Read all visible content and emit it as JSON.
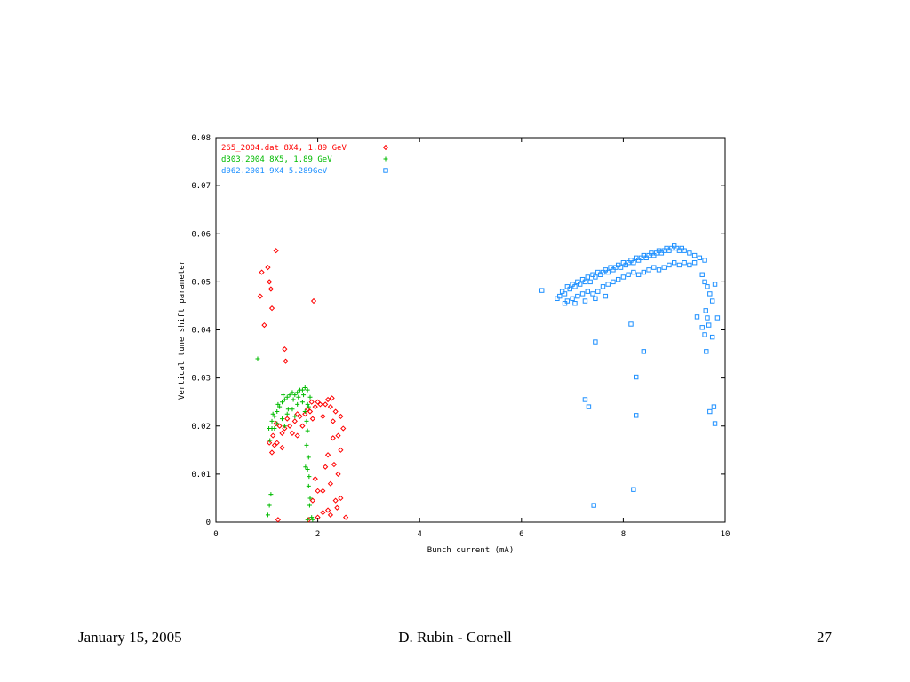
{
  "footer": {
    "date": "January 15, 2005",
    "author": "D. Rubin - Cornell",
    "page_number": "27"
  },
  "chart_data": {
    "type": "scatter",
    "title": "",
    "xlabel": "Bunch current (mA)",
    "ylabel": "Vertical tune shift parameter",
    "xlim": [
      0,
      10
    ],
    "ylim": [
      0,
      0.08
    ],
    "x_ticks": [
      "0",
      "2",
      "4",
      "6",
      "8",
      "10"
    ],
    "y_ticks": [
      "0",
      "0.01",
      "0.02",
      "0.03",
      "0.04",
      "0.05",
      "0.06",
      "0.07",
      "0.08"
    ],
    "grid": false,
    "legend_position": "top-left",
    "series": [
      {
        "name": "265_2004.dat 8X4, 1.89 GeV",
        "color": "#ff0000",
        "marker": "diamond",
        "points": [
          [
            0.87,
            0.047
          ],
          [
            0.9,
            0.052
          ],
          [
            0.95,
            0.041
          ],
          [
            1.02,
            0.053
          ],
          [
            1.05,
            0.05
          ],
          [
            1.08,
            0.0485
          ],
          [
            1.1,
            0.0445
          ],
          [
            1.18,
            0.0565
          ],
          [
            1.35,
            0.036
          ],
          [
            1.37,
            0.0335
          ],
          [
            1.92,
            0.046
          ],
          [
            1.22,
            0.0005
          ],
          [
            1.82,
            0.0005
          ],
          [
            2.0,
            0.001
          ],
          [
            2.1,
            0.002
          ],
          [
            2.2,
            0.0025
          ],
          [
            2.35,
            0.0045
          ],
          [
            2.45,
            0.005
          ],
          [
            2.55,
            0.001
          ],
          [
            2.25,
            0.008
          ],
          [
            2.4,
            0.01
          ],
          [
            2.32,
            0.012
          ],
          [
            2.2,
            0.014
          ],
          [
            2.45,
            0.015
          ],
          [
            1.9,
            0.0045
          ],
          [
            2.0,
            0.0065
          ],
          [
            1.95,
            0.009
          ],
          [
            2.15,
            0.0115
          ],
          [
            2.3,
            0.0175
          ],
          [
            2.5,
            0.0195
          ],
          [
            2.1,
            0.0065
          ],
          [
            2.25,
            0.0015
          ],
          [
            2.38,
            0.003
          ],
          [
            1.1,
            0.0145
          ],
          [
            1.15,
            0.016
          ],
          [
            1.2,
            0.0165
          ],
          [
            1.3,
            0.0185
          ],
          [
            1.35,
            0.0195
          ],
          [
            1.45,
            0.02
          ],
          [
            1.55,
            0.021
          ],
          [
            1.65,
            0.022
          ],
          [
            1.75,
            0.0225
          ],
          [
            1.85,
            0.023
          ],
          [
            1.95,
            0.024
          ],
          [
            2.05,
            0.0245
          ],
          [
            2.15,
            0.0245
          ],
          [
            2.25,
            0.024
          ],
          [
            2.35,
            0.023
          ],
          [
            2.45,
            0.022
          ],
          [
            1.12,
            0.018
          ],
          [
            1.25,
            0.02
          ],
          [
            1.4,
            0.0215
          ],
          [
            1.6,
            0.0225
          ],
          [
            1.8,
            0.0235
          ],
          [
            2.0,
            0.025
          ],
          [
            2.2,
            0.0255
          ],
          [
            1.18,
            0.0205
          ],
          [
            1.5,
            0.0185
          ],
          [
            1.7,
            0.02
          ],
          [
            1.9,
            0.0215
          ],
          [
            2.1,
            0.022
          ],
          [
            2.3,
            0.021
          ],
          [
            1.05,
            0.0165
          ],
          [
            1.3,
            0.0155
          ],
          [
            1.6,
            0.018
          ],
          [
            2.4,
            0.018
          ],
          [
            1.88,
            0.025
          ],
          [
            2.28,
            0.0258
          ]
        ]
      },
      {
        "name": "d303.2004 8X5, 1.89 GeV",
        "color": "#00bb00",
        "marker": "plus",
        "points": [
          [
            0.82,
            0.034
          ],
          [
            1.02,
            0.0015
          ],
          [
            1.05,
            0.0035
          ],
          [
            1.08,
            0.0058
          ],
          [
            1.06,
            0.017
          ],
          [
            1.04,
            0.0195
          ],
          [
            1.1,
            0.021
          ],
          [
            1.15,
            0.022
          ],
          [
            1.2,
            0.023
          ],
          [
            1.25,
            0.024
          ],
          [
            1.3,
            0.025
          ],
          [
            1.35,
            0.0255
          ],
          [
            1.4,
            0.026
          ],
          [
            1.45,
            0.0265
          ],
          [
            1.5,
            0.027
          ],
          [
            1.55,
            0.0265
          ],
          [
            1.6,
            0.027
          ],
          [
            1.65,
            0.0275
          ],
          [
            1.7,
            0.0275
          ],
          [
            1.75,
            0.028
          ],
          [
            1.8,
            0.0275
          ],
          [
            1.85,
            0.026
          ],
          [
            1.1,
            0.0195
          ],
          [
            1.2,
            0.0205
          ],
          [
            1.3,
            0.0215
          ],
          [
            1.4,
            0.0225
          ],
          [
            1.5,
            0.0235
          ],
          [
            1.6,
            0.0245
          ],
          [
            1.7,
            0.025
          ],
          [
            1.8,
            0.0245
          ],
          [
            1.12,
            0.0225
          ],
          [
            1.22,
            0.0245
          ],
          [
            1.32,
            0.0265
          ],
          [
            1.42,
            0.0235
          ],
          [
            1.52,
            0.0255
          ],
          [
            1.62,
            0.026
          ],
          [
            1.72,
            0.0265
          ],
          [
            1.15,
            0.0195
          ],
          [
            1.35,
            0.02
          ],
          [
            1.55,
            0.022
          ],
          [
            1.75,
            0.023
          ],
          [
            1.82,
            0.024
          ],
          [
            1.78,
            0.021
          ],
          [
            1.8,
            0.019
          ],
          [
            1.78,
            0.016
          ],
          [
            1.82,
            0.0135
          ],
          [
            1.8,
            0.011
          ],
          [
            1.83,
            0.0095
          ],
          [
            1.82,
            0.0075
          ],
          [
            1.85,
            0.005
          ],
          [
            1.84,
            0.0035
          ],
          [
            1.8,
            0.0005
          ],
          [
            1.88,
            0.001
          ],
          [
            1.9,
            0.0005
          ],
          [
            1.76,
            0.0115
          ]
        ]
      },
      {
        "name": "d062.2001 9X4 5.289GeV",
        "color": "#1e90ff",
        "marker": "square",
        "points": [
          [
            6.4,
            0.0482
          ],
          [
            6.7,
            0.0465
          ],
          [
            6.75,
            0.047
          ],
          [
            6.8,
            0.048
          ],
          [
            6.85,
            0.0475
          ],
          [
            6.9,
            0.049
          ],
          [
            6.95,
            0.0485
          ],
          [
            7.0,
            0.0495
          ],
          [
            7.05,
            0.049
          ],
          [
            7.1,
            0.05
          ],
          [
            7.15,
            0.0495
          ],
          [
            7.2,
            0.0505
          ],
          [
            7.25,
            0.05
          ],
          [
            7.3,
            0.051
          ],
          [
            7.35,
            0.05
          ],
          [
            7.4,
            0.0515
          ],
          [
            7.45,
            0.051
          ],
          [
            7.5,
            0.052
          ],
          [
            7.55,
            0.0515
          ],
          [
            7.6,
            0.052
          ],
          [
            7.65,
            0.0525
          ],
          [
            7.7,
            0.052
          ],
          [
            7.75,
            0.053
          ],
          [
            7.8,
            0.0525
          ],
          [
            7.85,
            0.053
          ],
          [
            7.9,
            0.0535
          ],
          [
            7.95,
            0.053
          ],
          [
            8.0,
            0.054
          ],
          [
            8.05,
            0.0535
          ],
          [
            8.1,
            0.054
          ],
          [
            8.15,
            0.0545
          ],
          [
            8.2,
            0.054
          ],
          [
            8.25,
            0.055
          ],
          [
            8.3,
            0.0545
          ],
          [
            8.35,
            0.055
          ],
          [
            8.4,
            0.0555
          ],
          [
            8.45,
            0.055
          ],
          [
            8.5,
            0.0555
          ],
          [
            8.55,
            0.056
          ],
          [
            8.6,
            0.0555
          ],
          [
            8.65,
            0.056
          ],
          [
            8.7,
            0.0565
          ],
          [
            8.75,
            0.056
          ],
          [
            8.8,
            0.0565
          ],
          [
            8.85,
            0.057
          ],
          [
            8.9,
            0.0565
          ],
          [
            8.95,
            0.057
          ],
          [
            9.0,
            0.0575
          ],
          [
            9.05,
            0.057
          ],
          [
            9.1,
            0.0565
          ],
          [
            9.15,
            0.057
          ],
          [
            9.2,
            0.0565
          ],
          [
            9.3,
            0.056
          ],
          [
            9.4,
            0.0555
          ],
          [
            9.5,
            0.055
          ],
          [
            9.6,
            0.0545
          ],
          [
            6.9,
            0.046
          ],
          [
            7.0,
            0.0465
          ],
          [
            7.1,
            0.047
          ],
          [
            7.2,
            0.0475
          ],
          [
            7.3,
            0.048
          ],
          [
            7.4,
            0.0475
          ],
          [
            7.5,
            0.048
          ],
          [
            7.6,
            0.049
          ],
          [
            7.7,
            0.0495
          ],
          [
            7.8,
            0.05
          ],
          [
            7.9,
            0.0505
          ],
          [
            8.0,
            0.051
          ],
          [
            8.1,
            0.0515
          ],
          [
            8.2,
            0.052
          ],
          [
            8.3,
            0.0515
          ],
          [
            8.4,
            0.052
          ],
          [
            8.5,
            0.0525
          ],
          [
            8.6,
            0.053
          ],
          [
            8.7,
            0.0525
          ],
          [
            8.8,
            0.053
          ],
          [
            8.9,
            0.0535
          ],
          [
            9.0,
            0.054
          ],
          [
            9.1,
            0.0535
          ],
          [
            9.2,
            0.054
          ],
          [
            9.3,
            0.0535
          ],
          [
            9.4,
            0.054
          ],
          [
            6.85,
            0.0455
          ],
          [
            7.05,
            0.0455
          ],
          [
            7.25,
            0.046
          ],
          [
            7.45,
            0.0465
          ],
          [
            7.65,
            0.047
          ],
          [
            9.55,
            0.0515
          ],
          [
            9.6,
            0.05
          ],
          [
            9.65,
            0.049
          ],
          [
            9.7,
            0.0475
          ],
          [
            9.75,
            0.046
          ],
          [
            9.8,
            0.0495
          ],
          [
            9.62,
            0.044
          ],
          [
            9.65,
            0.0425
          ],
          [
            9.85,
            0.0425
          ],
          [
            9.55,
            0.0405
          ],
          [
            9.6,
            0.039
          ],
          [
            9.75,
            0.0385
          ],
          [
            9.68,
            0.041
          ],
          [
            9.63,
            0.0355
          ],
          [
            7.45,
            0.0375
          ],
          [
            8.15,
            0.0412
          ],
          [
            8.4,
            0.0355
          ],
          [
            7.25,
            0.0255
          ],
          [
            7.32,
            0.024
          ],
          [
            8.25,
            0.0302
          ],
          [
            8.25,
            0.0222
          ],
          [
            9.7,
            0.023
          ],
          [
            9.78,
            0.024
          ],
          [
            9.8,
            0.0205
          ],
          [
            8.2,
            0.0068
          ],
          [
            7.42,
            0.0035
          ],
          [
            9.45,
            0.0427
          ]
        ]
      }
    ]
  }
}
